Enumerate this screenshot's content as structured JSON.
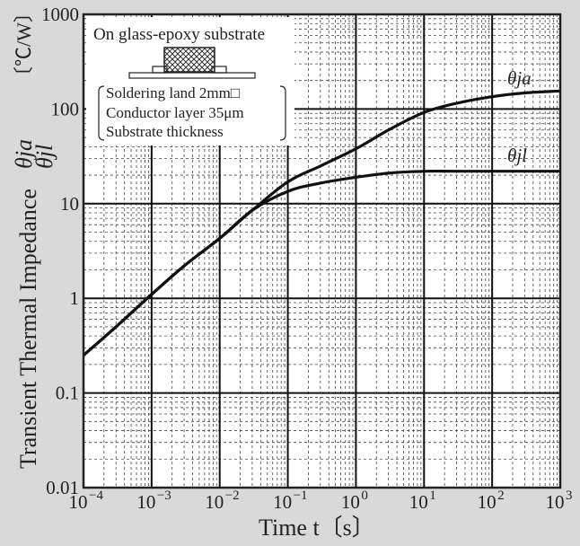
{
  "chart_data": {
    "type": "line",
    "xscale": "log",
    "yscale": "log",
    "xlim": [
      0.0001,
      1000
    ],
    "ylim": [
      0.01,
      1000
    ],
    "grid": true,
    "xlabel": "Time  t〔s〕",
    "ylabel": "Transient Thermal Impedance",
    "ylabel_symbols": [
      "θja",
      "θjl"
    ],
    "ylabel_unit": "〔℃/W〕",
    "x_ticks": [
      {
        "base": "10",
        "exp": "−4"
      },
      {
        "base": "10",
        "exp": "−3"
      },
      {
        "base": "10",
        "exp": "−2"
      },
      {
        "base": "10",
        "exp": "−1"
      },
      {
        "base": "10",
        "exp": "0"
      },
      {
        "base": "10",
        "exp": "1"
      },
      {
        "base": "10",
        "exp": "2"
      },
      {
        "base": "10",
        "exp": "3"
      }
    ],
    "y_ticks": [
      "0.01",
      "0.1",
      "1",
      "10",
      "100",
      "1000"
    ],
    "annotation": {
      "title": "On glass-epoxy substrate",
      "lines": [
        "Soldering land 2mm□",
        "Conductor layer 35μm",
        "Substrate thickness"
      ]
    },
    "series": [
      {
        "name": "θja",
        "x": [
          0.0001,
          0.0003,
          0.001,
          0.003,
          0.01,
          0.03,
          0.1,
          0.3,
          1,
          3,
          10,
          30,
          100,
          300,
          1000
        ],
        "y": [
          0.25,
          0.5,
          1.1,
          2.2,
          4.3,
          8.5,
          17,
          25,
          38,
          60,
          92,
          115,
          135,
          148,
          155
        ]
      },
      {
        "name": "θjl",
        "x": [
          0.0001,
          0.0003,
          0.001,
          0.003,
          0.01,
          0.03,
          0.1,
          0.3,
          1,
          3,
          10,
          30,
          100,
          300,
          1000
        ],
        "y": [
          0.25,
          0.5,
          1.1,
          2.2,
          4.3,
          8.5,
          13.5,
          16.5,
          19,
          21,
          22,
          22,
          22,
          22,
          22
        ]
      }
    ]
  }
}
